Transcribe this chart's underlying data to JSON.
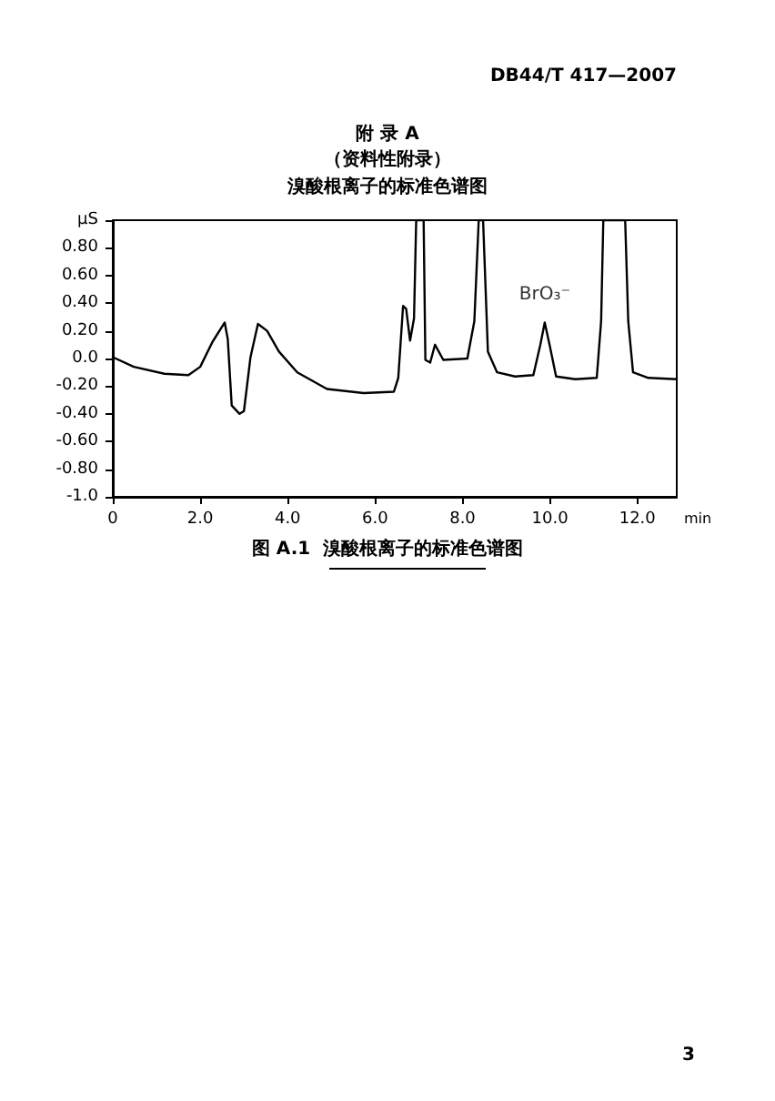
{
  "chart_data": {
    "type": "line",
    "title": "附 录 A",
    "subtitle": "（资料性附录）",
    "xlabel": "min",
    "x": [
      0,
      0.48,
      1.18,
      1.73,
      2.0,
      2.28,
      2.56,
      2.63,
      2.72,
      2.9,
      3.0,
      3.15,
      3.32,
      3.53,
      3.8,
      4.22,
      4.9,
      5.74,
      6.43,
      6.53,
      6.64,
      6.71,
      6.8,
      6.89,
      6.94,
      7.11,
      7.15,
      7.26,
      7.37,
      7.56,
      8.11,
      8.27,
      8.37,
      8.47,
      8.58,
      8.79,
      9.2,
      9.62,
      9.78,
      9.88,
      9.99,
      10.14,
      10.58,
      11.07,
      11.17,
      11.22,
      11.72,
      11.79,
      11.9,
      12.25,
      12.9
    ],
    "series": [
      {
        "color": "#000000",
        "values": [
          0.01,
          -0.06,
          -0.11,
          -0.12,
          -0.06,
          0.12,
          0.26,
          0.14,
          -0.34,
          -0.4,
          -0.38,
          0.01,
          0.25,
          0.2,
          0.05,
          -0.1,
          -0.22,
          -0.25,
          -0.24,
          -0.14,
          0.38,
          0.36,
          0.13,
          0.29,
          1.0,
          1.0,
          -0.01,
          -0.03,
          0.1,
          -0.01,
          0.0,
          0.27,
          1.0,
          1.0,
          0.05,
          -0.1,
          -0.13,
          -0.12,
          0.1,
          0.26,
          0.1,
          -0.13,
          -0.15,
          -0.14,
          0.27,
          1.0,
          1.0,
          0.27,
          -0.1,
          -0.14,
          -0.15
        ]
      }
    ],
    "xlim": [
      0,
      12.9
    ],
    "xticks": [
      {
        "value": 0,
        "label": "0"
      },
      {
        "value": 2,
        "label": "2.0"
      },
      {
        "value": 4,
        "label": "4.0"
      },
      {
        "value": 6,
        "label": "6.0"
      },
      {
        "value": 8,
        "label": "8.0"
      },
      {
        "value": 10,
        "label": "10.0"
      },
      {
        "value": 12,
        "label": "12.0"
      }
    ],
    "ylim": [
      -1,
      1
    ],
    "yticks": [
      {
        "value": 1,
        "label": "μS"
      },
      {
        "value": 0.8,
        "label": "0.80"
      },
      {
        "value": 0.6,
        "label": "0.60"
      },
      {
        "value": 0.4,
        "label": "0.40"
      },
      {
        "value": 0.2,
        "label": "0.20"
      },
      {
        "value": 0,
        "label": "0.0"
      },
      {
        "value": -0.2,
        "label": "-0.20"
      },
      {
        "value": -0.4,
        "label": "-0.40"
      },
      {
        "value": -0.6,
        "label": "-0.60"
      },
      {
        "value": -0.8,
        "label": "-0.80"
      },
      {
        "value": -1,
        "label": "-1.0"
      }
    ],
    "annotations": [
      "DB44/T 417—2007",
      "溴酸根离子的标准色谱图",
      {
        "text": "BrO₃⁻",
        "x": 9.88,
        "y": 0.26
      },
      "图 A.1  溴酸根离子的标准色谱图",
      "3"
    ],
    "grid": false,
    "marker": "none",
    "line_style": "solid"
  }
}
